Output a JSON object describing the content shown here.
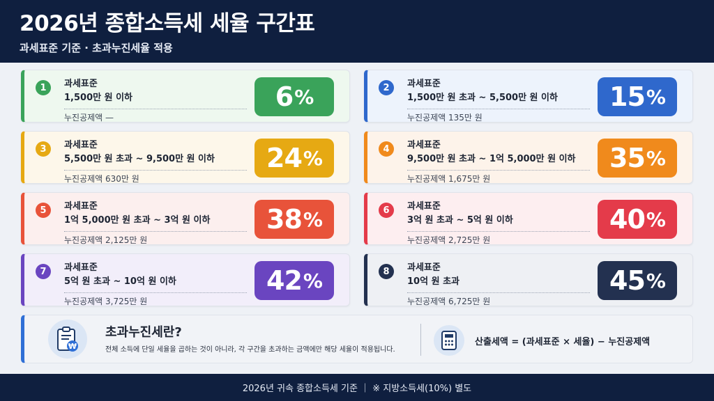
{
  "header": {
    "title": "2026년 종합소득세 세율 구간표",
    "subtitle": "과세표준 기준 · 초과누진세율 적용"
  },
  "brackets": [
    {
      "num": "1",
      "label": "과세표준",
      "range": "1,500만 원 이하",
      "deduction": "누진공제액 —",
      "rate": "6",
      "pct": "%",
      "color": "#3aa35a",
      "bg": "#eef8ef"
    },
    {
      "num": "2",
      "label": "과세표준",
      "range": "1,500만 원 초과 ~ 5,500만 원 이하",
      "deduction": "누진공제액 135만 원",
      "rate": "15",
      "pct": "%",
      "color": "#2f68cc",
      "bg": "#edf3fc"
    },
    {
      "num": "3",
      "label": "과세표준",
      "range": "5,500만 원 초과 ~ 9,500만 원 이하",
      "deduction": "누진공제액 630만 원",
      "rate": "24",
      "pct": "%",
      "color": "#e6a913",
      "bg": "#fdf7ea"
    },
    {
      "num": "4",
      "label": "과세표준",
      "range": "9,500만 원 초과 ~ 1억 5,000만 원 이하",
      "deduction": "누진공제액 1,675만 원",
      "rate": "35",
      "pct": "%",
      "color": "#f08a1c",
      "bg": "#fdf3ea"
    },
    {
      "num": "5",
      "label": "과세표준",
      "range": "1억 5,000만 원 초과 ~ 3억 원 이하",
      "deduction": "누진공제액 2,125만 원",
      "rate": "38",
      "pct": "%",
      "color": "#e8533a",
      "bg": "#fcefee"
    },
    {
      "num": "6",
      "label": "과세표준",
      "range": "3억 원 초과 ~ 5억 원 이하",
      "deduction": "누진공제액 2,725만 원",
      "rate": "40",
      "pct": "%",
      "color": "#e43b4a",
      "bg": "#fdeef0"
    },
    {
      "num": "7",
      "label": "과세표준",
      "range": "5억 원 초과 ~ 10억 원 이하",
      "deduction": "누진공제액 3,725만 원",
      "rate": "42",
      "pct": "%",
      "color": "#6a45c0",
      "bg": "#f2eefa"
    },
    {
      "num": "8",
      "label": "과세표준",
      "range": "10억 원 초과",
      "deduction": "누진공제액 6,725만 원",
      "rate": "45",
      "pct": "%",
      "color": "#233150",
      "bg": "#eef0f4"
    }
  ],
  "info": {
    "title": "초과누진세란?",
    "description": "전체 소득에 단일 세율을 곱하는 것이 아니라, 각 구간을 초과하는 금액에만 해당 세율이 적용됩니다.",
    "formula": "산출세액 = (과세표준 × 세율) − 누진공제액",
    "icon_left": "clipboard-won-icon",
    "icon_right": "calculator-icon"
  },
  "footer": {
    "text": "2026년 귀속 종합소득세 기준 ｜ ※ 지방소득세(10%) 별도"
  }
}
